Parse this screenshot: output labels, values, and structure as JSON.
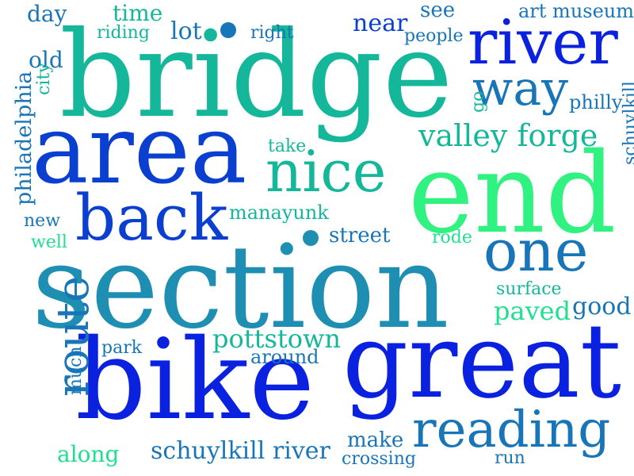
{
  "title": "Word cloud",
  "colors": {
    "deep_blue": "#0a22e0",
    "royal_blue": "#0b3fd0",
    "blue": "#1456c8",
    "steel_blue": "#1876b8",
    "cerulean": "#1e8fb2",
    "teal": "#1aa3a0",
    "sea_green": "#15b79a",
    "mint": "#1fe08f",
    "spring_green": "#2ff280"
  },
  "words": [
    {
      "text": "bridge",
      "color": "sea_green"
    },
    {
      "text": "section",
      "color": "cerulean"
    },
    {
      "text": "end",
      "color": "spring_green"
    },
    {
      "text": "great",
      "color": "deep_blue"
    },
    {
      "text": "bike",
      "color": "deep_blue"
    },
    {
      "text": "area",
      "color": "royal_blue"
    },
    {
      "text": "river",
      "color": "deep_blue"
    },
    {
      "text": "back",
      "color": "royal_blue"
    },
    {
      "text": "nice",
      "color": "sea_green"
    },
    {
      "text": "one",
      "color": "steel_blue"
    },
    {
      "text": "way",
      "color": "steel_blue"
    },
    {
      "text": "reading",
      "color": "steel_blue"
    },
    {
      "text": "route",
      "color": "steel_blue"
    },
    {
      "text": "valley forge",
      "color": "sea_green"
    },
    {
      "text": "schuylkill river",
      "color": "steel_blue"
    },
    {
      "text": "pottstown",
      "color": "sea_green"
    },
    {
      "text": "paved",
      "color": "mint"
    },
    {
      "text": "good",
      "color": "steel_blue"
    },
    {
      "text": "near",
      "color": "royal_blue"
    },
    {
      "text": "lot",
      "color": "steel_blue"
    },
    {
      "text": "street",
      "color": "steel_blue"
    },
    {
      "text": "time",
      "color": "sea_green"
    },
    {
      "text": "day",
      "color": "steel_blue"
    },
    {
      "text": "old",
      "color": "steel_blue"
    },
    {
      "text": "see",
      "color": "steel_blue"
    },
    {
      "text": "philly",
      "color": "steel_blue"
    },
    {
      "text": "philadelphia",
      "color": "steel_blue"
    },
    {
      "text": "manayunk",
      "color": "sea_green"
    },
    {
      "text": "make",
      "color": "steel_blue"
    },
    {
      "text": "along",
      "color": "mint"
    },
    {
      "text": "around",
      "color": "steel_blue"
    },
    {
      "text": "art museum",
      "color": "steel_blue"
    },
    {
      "text": "people",
      "color": "steel_blue"
    },
    {
      "text": "riding",
      "color": "sea_green"
    },
    {
      "text": "right",
      "color": "steel_blue"
    },
    {
      "text": "take",
      "color": "sea_green"
    },
    {
      "text": "new",
      "color": "steel_blue"
    },
    {
      "text": "well",
      "color": "mint"
    },
    {
      "text": "rode",
      "color": "mint"
    },
    {
      "text": "surface",
      "color": "sea_green"
    },
    {
      "text": "park",
      "color": "steel_blue"
    },
    {
      "text": "much",
      "color": "steel_blue"
    },
    {
      "text": "crossing",
      "color": "steel_blue"
    },
    {
      "text": "run",
      "color": "steel_blue"
    },
    {
      "text": "city",
      "color": "sea_green"
    },
    {
      "text": "go",
      "color": "sea_green"
    },
    {
      "text": "schuylkill",
      "color": "steel_blue"
    }
  ]
}
